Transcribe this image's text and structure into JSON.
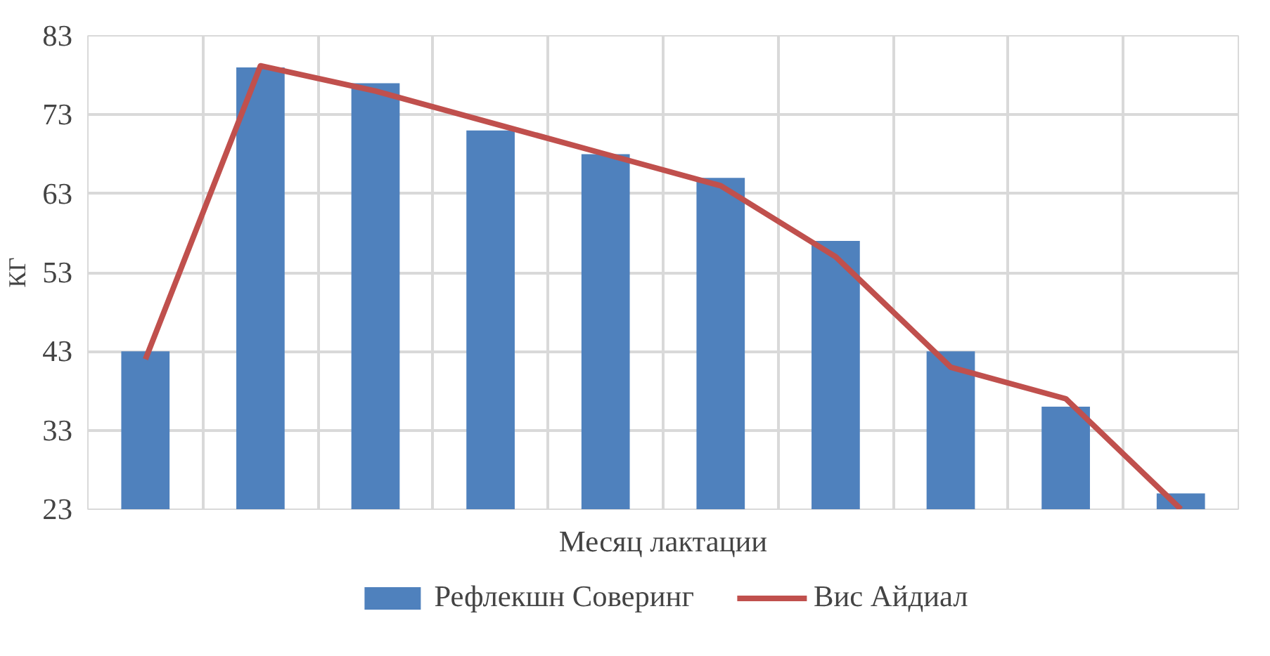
{
  "chart_data": {
    "type": "bar",
    "categories": [
      null,
      null,
      null,
      null,
      null,
      null,
      null,
      null,
      null,
      null
    ],
    "series": [
      {
        "name": "Рефлекшн Соверинг",
        "color": "#4f81bd",
        "values": [
          43,
          79,
          77,
          71,
          68,
          65,
          57,
          43,
          36,
          25
        ]
      },
      {
        "name": "Вис Айдиал",
        "type": "line",
        "color": "#c0504d",
        "values": [
          42,
          79.2,
          76,
          72,
          68,
          64,
          55,
          41,
          37,
          23
        ]
      }
    ],
    "xlabel": "Месяц лактации",
    "ylabel": "КГ",
    "ylim": [
      23,
      83
    ],
    "yticks": [
      23,
      33,
      43,
      53,
      63,
      73,
      83
    ],
    "grid": true,
    "legend": "bottom",
    "tick_labels": "y",
    "marker": "none",
    "line_style": "solid"
  }
}
